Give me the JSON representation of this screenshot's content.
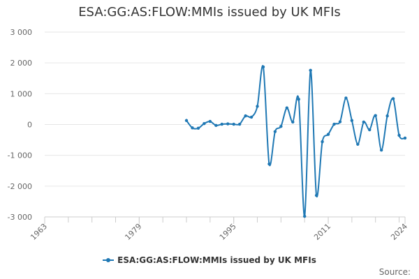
{
  "page": {
    "source_label": "Source:"
  },
  "chart_data": {
    "type": "line",
    "title": "ESA:GG:AS:FLOW:MMIs issued by UK MFIs",
    "xlabel": "",
    "ylabel": "",
    "xlim": [
      1963,
      2024
    ],
    "ylim": [
      -3000,
      3000
    ],
    "x_ticks": [
      1963,
      1979,
      1995,
      2011,
      2024
    ],
    "y_ticks": [
      3000,
      2000,
      1000,
      0,
      -1000,
      -2000,
      -3000
    ],
    "y_tick_labels": [
      "3 000",
      "2 000",
      "1 000",
      "0",
      "-1 000",
      "-2 000",
      "-3 000"
    ],
    "grid": true,
    "legend_position": "bottom",
    "color": "#1f78b4",
    "series": [
      {
        "name": "ESA:GG:AS:FLOW:MMIs issued by UK MFIs",
        "x": [
          1987,
          1988,
          1989,
          1990,
          1991,
          1992,
          1993,
          1994,
          1995,
          1996,
          1997,
          1998,
          1999,
          2000,
          2001,
          2002,
          2003,
          2004,
          2005,
          2006,
          2007,
          2008,
          2009,
          2010,
          2011,
          2012,
          2013,
          2014,
          2015,
          2016,
          2017,
          2018,
          2019,
          2020,
          2021,
          2022,
          2023,
          2024
        ],
        "values": [
          130,
          -110,
          -120,
          30,
          100,
          -30,
          10,
          20,
          10,
          10,
          280,
          240,
          590,
          1870,
          -1280,
          -230,
          -60,
          540,
          80,
          820,
          -2980,
          1760,
          -2300,
          -560,
          -320,
          10,
          90,
          860,
          130,
          -640,
          80,
          -170,
          290,
          -830,
          280,
          840,
          -350,
          -440
        ]
      }
    ]
  }
}
